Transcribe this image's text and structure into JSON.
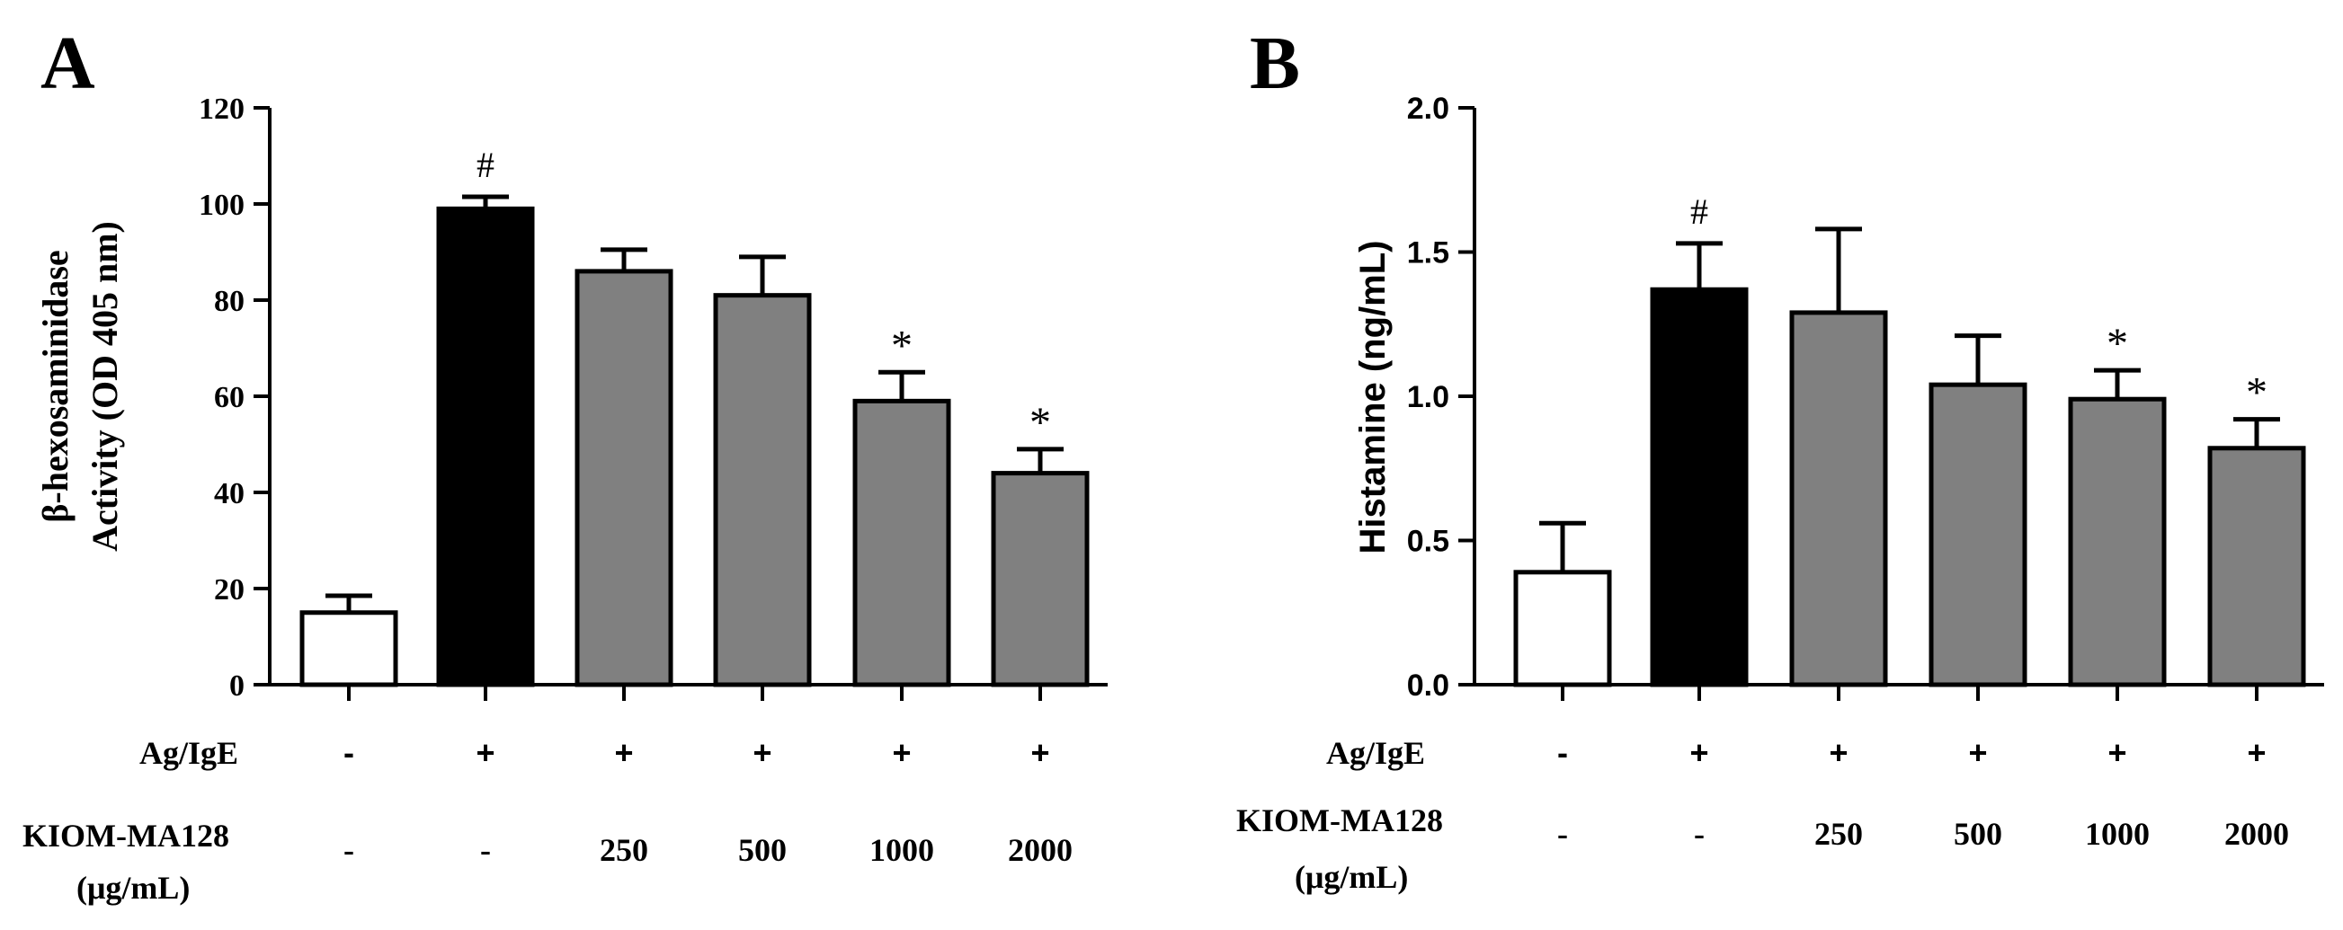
{
  "chart_data": [
    {
      "type": "bar",
      "panel": "A",
      "ylabel_lines": [
        "β-hexosaminidase",
        "Activity (OD 405 nm)"
      ],
      "ylim": [
        0,
        120
      ],
      "yticks": [
        0,
        20,
        40,
        60,
        80,
        100,
        120
      ],
      "ytick_labels": [
        "0",
        "20",
        "40",
        "60",
        "80",
        "100",
        "120"
      ],
      "categories": [
        "- / -",
        "+ / -",
        "+ / 250",
        "+ / 500",
        "+ / 1000",
        "+ / 2000"
      ],
      "values": [
        15,
        99,
        86,
        81,
        59,
        44
      ],
      "errors": [
        3.5,
        2.5,
        4.5,
        8,
        6,
        5
      ],
      "bar_colors": [
        "#ffffff",
        "#000000",
        "#808080",
        "#808080",
        "#808080",
        "#808080"
      ],
      "annotations": [
        "",
        "#",
        "",
        "",
        "*",
        "*"
      ],
      "row1_label": "Ag/IgE",
      "row1": [
        "-",
        "+",
        "+",
        "+",
        "+",
        "+"
      ],
      "row2_label": [
        "KIOM-MA128",
        "(μg/mL)"
      ],
      "row2": [
        "-",
        "-",
        "250",
        "500",
        "1000",
        "2000"
      ]
    },
    {
      "type": "bar",
      "panel": "B",
      "ylabel_lines": [
        "Histamine (ng/mL)"
      ],
      "ylim": [
        0,
        2.0
      ],
      "yticks": [
        0,
        0.5,
        1.0,
        1.5,
        2.0
      ],
      "ytick_labels": [
        "0.0",
        "0.5",
        "1.0",
        "1.5",
        "2.0"
      ],
      "categories": [
        "- / -",
        "+ / -",
        "+ / 250",
        "+ / 500",
        "+ / 1000",
        "+ / 2000"
      ],
      "values": [
        0.39,
        1.37,
        1.29,
        1.04,
        0.99,
        0.82
      ],
      "errors": [
        0.17,
        0.16,
        0.29,
        0.17,
        0.1,
        0.1
      ],
      "bar_colors": [
        "#ffffff",
        "#000000",
        "#808080",
        "#808080",
        "#808080",
        "#808080"
      ],
      "annotations": [
        "",
        "#",
        "",
        "",
        "*",
        "*"
      ],
      "row1_label": "Ag/IgE",
      "row1": [
        "-",
        "+",
        "+",
        "+",
        "+",
        "+"
      ],
      "row2_label": [
        "KIOM-MA128",
        "(μg/mL)"
      ],
      "row2": [
        "-",
        "-",
        "250",
        "500",
        "1000",
        "2000"
      ]
    }
  ]
}
